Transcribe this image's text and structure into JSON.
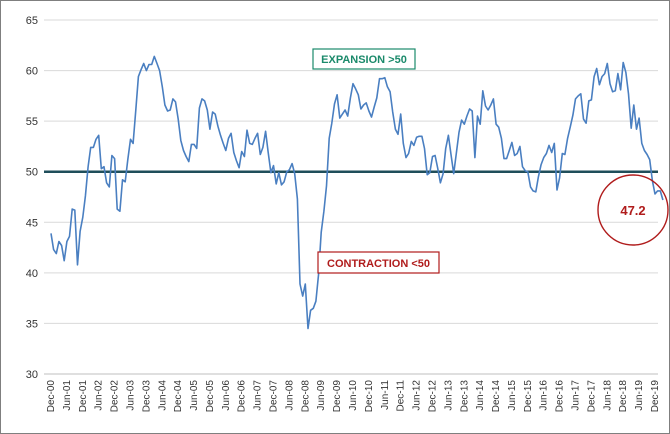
{
  "chart_data": {
    "type": "line",
    "title": "",
    "xlabel": "",
    "ylabel": "",
    "ylim": [
      30,
      65
    ],
    "yticks": [
      30,
      35,
      40,
      45,
      50,
      55,
      60,
      65
    ],
    "grid": "horizontal",
    "x_tick_labels": [
      "Dec-00",
      "Jun-01",
      "Dec-01",
      "Jun-02",
      "Dec-02",
      "Jun-03",
      "Dec-03",
      "Jun-04",
      "Dec-04",
      "Jun-05",
      "Dec-05",
      "Jun-06",
      "Dec-06",
      "Jun-07",
      "Dec-07",
      "Jun-08",
      "Dec-08",
      "Jun-09",
      "Dec-09",
      "Jun-10",
      "Dec-10",
      "Jun-11",
      "Dec-11",
      "Jun-12",
      "Dec-12",
      "Jun-13",
      "Dec-13",
      "Jun-14",
      "Dec-14",
      "Jun-15",
      "Dec-15",
      "Jun-16",
      "Dec-16",
      "Jun-17",
      "Dec-17",
      "Jun-18",
      "Dec-18",
      "Jun-19",
      "Dec-19"
    ],
    "series": [
      {
        "color": "#4a7fc1",
        "x_start": "Dec-00",
        "x_end": "Nov-19",
        "frequency": "monthly",
        "values": [
          43.9,
          42.3,
          41.9,
          43.1,
          42.7,
          41.2,
          43.1,
          43.6,
          46.3,
          46.2,
          40.8,
          44.1,
          45.5,
          47.6,
          50.5,
          52.4,
          52.4,
          53.2,
          53.6,
          50.3,
          50.5,
          48.9,
          48.5,
          51.6,
          51.3,
          46.3,
          46.1,
          49.2,
          49.0,
          51.2,
          53.2,
          52.8,
          56.1,
          59.4,
          60.1,
          60.7,
          60.0,
          60.6,
          60.6,
          61.4,
          60.7,
          60.0,
          58.4,
          56.6,
          56.0,
          56.1,
          57.2,
          56.9,
          55.2,
          53.1,
          52.1,
          51.5,
          51.0,
          52.7,
          52.7,
          52.3,
          56.3,
          57.2,
          57.0,
          56.1,
          54.2,
          55.9,
          55.7,
          54.5,
          53.6,
          52.8,
          52.1,
          53.3,
          53.8,
          51.9,
          51.1,
          50.4,
          52.0,
          51.5,
          54.1,
          52.8,
          52.7,
          53.3,
          53.8,
          51.7,
          52.4,
          54.0,
          51.9,
          49.9,
          50.6,
          48.8,
          49.9,
          48.7,
          49.0,
          50.0,
          50.2,
          50.8,
          49.8,
          47.3,
          38.9,
          37.7,
          38.9,
          34.5,
          36.3,
          36.5,
          37.2,
          39.9,
          44.0,
          46.1,
          48.6,
          53.3,
          54.8,
          56.7,
          57.6,
          55.3,
          55.7,
          56.1,
          55.5,
          57.3,
          58.7,
          58.2,
          57.6,
          56.2,
          56.6,
          56.8,
          56.0,
          55.4,
          56.4,
          57.3,
          59.2,
          59.2,
          59.3,
          58.4,
          57.9,
          55.9,
          54.2,
          53.7,
          55.7,
          52.8,
          51.4,
          51.8,
          53.0,
          52.6,
          53.4,
          53.5,
          53.5,
          52.3,
          49.7,
          49.9,
          51.5,
          51.6,
          50.3,
          48.9,
          49.8,
          52.3,
          53.6,
          51.7,
          49.8,
          51.8,
          53.9,
          55.1,
          54.7,
          55.5,
          56.2,
          56.0,
          51.4,
          55.5,
          54.7,
          58.0,
          56.5,
          56.1,
          56.6,
          57.2,
          54.7,
          54.4,
          53.3,
          51.3,
          51.3,
          52.1,
          52.9,
          51.6,
          51.8,
          52.5,
          50.5,
          50.1,
          50.0,
          48.5,
          48.1,
          48.0,
          49.5,
          50.7,
          51.4,
          51.8,
          52.6,
          51.9,
          52.8,
          48.2,
          49.4,
          51.8,
          51.7,
          53.3,
          54.4,
          55.6,
          57.2,
          57.5,
          57.7,
          55.2,
          54.8,
          57.0,
          57.1,
          59.4,
          60.2,
          58.6,
          59.4,
          59.7,
          60.7,
          58.7,
          57.9,
          58.0,
          59.7,
          58.1,
          60.8,
          59.8,
          57.7,
          54.3,
          56.6,
          54.2,
          55.3,
          52.8,
          52.1,
          51.7,
          51.2,
          49.1,
          47.8,
          48.1,
          48.1,
          47.2
        ]
      }
    ],
    "reference_line": {
      "value": 50,
      "color": "#1f4e5a"
    },
    "annotations": [
      {
        "text": "EXPANSION >50",
        "color": "#1b8a6b"
      },
      {
        "text": "CONTRACTION <50",
        "color": "#b01c1c"
      },
      {
        "text": "47.2",
        "color": "#b01c1c",
        "circled": true
      }
    ]
  }
}
